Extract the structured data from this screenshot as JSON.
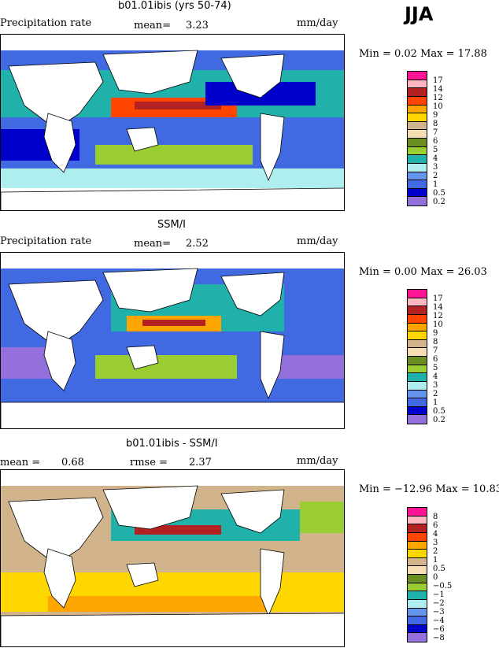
{
  "season": "JJA",
  "panels": [
    {
      "title": "b01.01ibis (yrs 50-74)",
      "left_label": "Precipitation rate",
      "mid_label": "mean=",
      "mid_value": "3.23",
      "units": "mm/day",
      "minmax": "Min =   0.02 Max =  17.88",
      "levels": [
        "17",
        "14",
        "12",
        "10",
        "9",
        "8",
        "7",
        "6",
        "5",
        "4",
        "3",
        "2",
        "1",
        "0.5",
        "0.2"
      ],
      "colors": [
        "#ff1493",
        "#ffb6c1",
        "#b22222",
        "#ff4500",
        "#ffa500",
        "#ffd700",
        "#d2b48c",
        "#f5deb3",
        "#6b8e23",
        "#9acd32",
        "#20b2aa",
        "#afeeee",
        "#6495ed",
        "#4169e1",
        "#0000cd",
        "#9370db"
      ]
    },
    {
      "title": "SSM/I",
      "left_label": "Precipitation rate",
      "mid_label": "mean=",
      "mid_value": "2.52",
      "units": "mm/day",
      "minmax": "Min =   0.00 Max =  26.03",
      "levels": [
        "17",
        "14",
        "12",
        "10",
        "9",
        "8",
        "7",
        "6",
        "5",
        "4",
        "3",
        "2",
        "1",
        "0.5",
        "0.2"
      ],
      "colors": [
        "#ff1493",
        "#ffb6c1",
        "#b22222",
        "#ff4500",
        "#ffa500",
        "#ffd700",
        "#d2b48c",
        "#f5deb3",
        "#6b8e23",
        "#9acd32",
        "#20b2aa",
        "#afeeee",
        "#6495ed",
        "#4169e1",
        "#0000cd",
        "#9370db"
      ]
    },
    {
      "title": "b01.01ibis - SSM/I",
      "left_label": "mean =",
      "left_value": "0.68",
      "mid_label": "rmse =",
      "mid_value": "2.37",
      "units": "mm/day",
      "minmax": "Min = −12.96 Max =  10.83",
      "levels": [
        "8",
        "6",
        "4",
        "3",
        "2",
        "1",
        "0.5",
        "0",
        "−0.5",
        "−1",
        "−2",
        "−3",
        "−4",
        "−6",
        "−8"
      ],
      "colors": [
        "#ff1493",
        "#ffb6c1",
        "#b22222",
        "#ff4500",
        "#ffa500",
        "#ffd700",
        "#d2b48c",
        "#f5deb3",
        "#6b8e23",
        "#9acd32",
        "#20b2aa",
        "#afeeee",
        "#6495ed",
        "#4169e1",
        "#0000cd",
        "#9370db"
      ]
    }
  ]
}
